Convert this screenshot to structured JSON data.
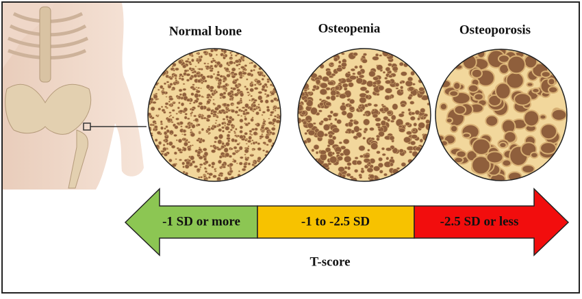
{
  "panels": [
    {
      "title": "Normal bone"
    },
    {
      "title": "Osteopenia"
    },
    {
      "title": "Osteoporosis"
    }
  ],
  "scale": {
    "segments": [
      {
        "label": "-1 SD or more"
      },
      {
        "label": "-1 to -2.5 SD"
      },
      {
        "label": "-2.5 SD or less"
      }
    ],
    "axis_label": "T-score"
  }
}
